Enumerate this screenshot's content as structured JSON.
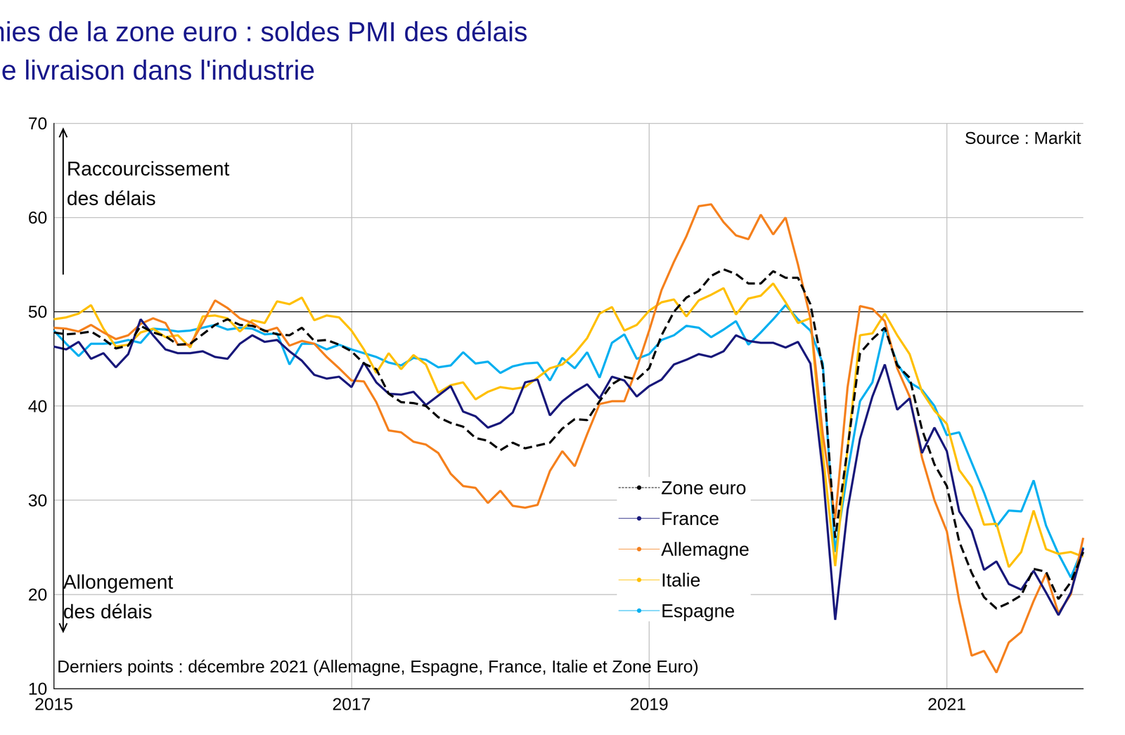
{
  "chart_data": {
    "type": "line",
    "title": "Principales économies de la zone euro : soldes PMI des délais de livraison dans l'industrie",
    "categories": [
      "2015",
      null,
      null,
      null,
      null,
      null,
      null,
      null,
      null,
      null,
      null,
      null,
      null,
      null,
      null,
      null,
      null,
      null,
      null,
      null,
      null,
      null,
      null,
      null,
      "2017",
      null,
      null,
      null,
      null,
      null,
      null,
      null,
      null,
      null,
      null,
      null,
      null,
      null,
      null,
      null,
      null,
      null,
      null,
      null,
      null,
      null,
      null,
      null,
      "2019",
      null,
      null,
      null,
      null,
      null,
      null,
      null,
      null,
      null,
      null,
      null,
      null,
      null,
      null,
      null,
      null,
      null,
      null,
      null,
      null,
      null,
      null,
      null,
      "2021",
      null,
      null,
      null,
      null,
      null,
      null,
      null,
      null,
      null,
      null,
      null
    ],
    "series": [
      {
        "name": "Zone euro",
        "color": "#000000",
        "line_style": "dashed",
        "values": [
          47.8,
          47.6,
          47.7,
          47.9,
          47.1,
          46.1,
          46.4,
          48.5,
          47.8,
          47.4,
          46.5,
          46.6,
          47.6,
          48.6,
          49.2,
          48.6,
          48.5,
          48.0,
          47.6,
          47.5,
          48.3,
          46.9,
          47.0,
          46.5,
          45.8,
          44.5,
          43.9,
          41.3,
          40.4,
          40.3,
          40.0,
          38.8,
          38.2,
          37.8,
          36.6,
          36.3,
          35.3,
          36.1,
          35.5,
          35.8,
          36.1,
          37.6,
          38.6,
          38.5,
          40.5,
          42.3,
          43.1,
          42.8,
          44.0,
          47.5,
          50.0,
          51.5,
          52.2,
          53.8,
          54.5,
          54.0,
          53.0,
          53.0,
          54.3,
          53.6,
          53.6,
          50.8,
          44.0,
          26.0,
          35.5,
          45.6,
          47.1,
          48.3,
          44.3,
          43.0,
          37.5,
          33.8,
          31.5,
          25.6,
          22.3,
          19.7,
          18.5,
          19.1,
          19.9,
          22.7,
          22.4,
          19.5,
          21.3,
          24.5
        ]
      },
      {
        "name": "France",
        "color": "#1b1b7c",
        "line_style": "solid",
        "values": [
          46.3,
          46.0,
          46.8,
          45.0,
          45.6,
          44.1,
          45.5,
          49.2,
          47.5,
          46.0,
          45.6,
          45.6,
          45.8,
          45.2,
          45.0,
          46.6,
          47.5,
          46.8,
          47.0,
          45.8,
          44.8,
          43.3,
          42.9,
          43.1,
          42.0,
          44.6,
          42.5,
          41.3,
          41.2,
          41.5,
          40.1,
          41.1,
          42.1,
          39.4,
          38.9,
          37.7,
          38.2,
          39.3,
          42.5,
          42.8,
          39.0,
          40.5,
          41.5,
          42.3,
          40.8,
          43.1,
          42.7,
          41.0,
          42.1,
          42.8,
          44.4,
          44.9,
          45.5,
          45.2,
          45.8,
          47.5,
          46.9,
          46.7,
          46.7,
          46.2,
          46.8,
          44.5,
          33.0,
          17.3,
          29.0,
          36.5,
          41.0,
          44.4,
          39.6,
          40.8,
          35.0,
          37.7,
          35.2,
          28.8,
          26.8,
          22.6,
          23.5,
          21.1,
          20.5,
          22.5,
          20.2,
          17.8,
          20.2,
          24.9
        ]
      },
      {
        "name": "Allemagne",
        "color": "#f58220",
        "line_style": "solid",
        "values": [
          48.3,
          48.2,
          47.9,
          48.6,
          47.8,
          47.1,
          47.5,
          48.7,
          49.3,
          48.8,
          46.5,
          46.5,
          48.8,
          51.2,
          50.4,
          49.3,
          48.8,
          47.9,
          48.3,
          46.4,
          46.9,
          46.6,
          45.2,
          44.0,
          42.7,
          42.6,
          40.4,
          37.4,
          37.2,
          36.2,
          35.9,
          35.0,
          32.8,
          31.5,
          31.3,
          29.7,
          31.0,
          29.4,
          29.2,
          29.5,
          33.1,
          35.2,
          33.6,
          37.0,
          40.2,
          40.5,
          40.5,
          44.0,
          48.0,
          52.3,
          55.3,
          58.0,
          61.2,
          61.4,
          59.5,
          58.1,
          57.7,
          60.3,
          58.2,
          60.0,
          55.0,
          49.3,
          37.0,
          28.0,
          42.0,
          50.6,
          50.3,
          49.0,
          44.0,
          41.0,
          34.5,
          30.0,
          26.7,
          19.3,
          13.5,
          14.0,
          11.7,
          14.9,
          16.0,
          19.3,
          22.2,
          18.0,
          20.0,
          26.0
        ]
      },
      {
        "name": "Italie",
        "color": "#ffc000",
        "line_style": "solid",
        "values": [
          49.2,
          49.4,
          49.8,
          50.7,
          48.2,
          46.3,
          46.5,
          47.8,
          48.2,
          47.3,
          47.5,
          46.2,
          49.5,
          49.6,
          49.3,
          47.9,
          49.1,
          48.8,
          51.1,
          50.8,
          51.5,
          49.1,
          49.6,
          49.4,
          48.0,
          46.0,
          43.5,
          45.6,
          43.9,
          45.4,
          44.4,
          41.4,
          42.2,
          42.5,
          40.7,
          41.5,
          42.0,
          41.8,
          42.0,
          43.0,
          44.0,
          44.4,
          45.6,
          47.2,
          49.8,
          50.5,
          48.0,
          48.6,
          50.1,
          51.0,
          51.3,
          49.5,
          51.2,
          51.8,
          52.5,
          49.7,
          51.4,
          51.7,
          53.0,
          51.0,
          48.8,
          49.3,
          35.0,
          23.0,
          35.5,
          47.5,
          47.7,
          49.8,
          47.5,
          45.5,
          41.5,
          39.5,
          38.1,
          33.2,
          31.4,
          27.4,
          27.5,
          22.9,
          24.5,
          28.9,
          24.8,
          24.3,
          24.5,
          24.0
        ]
      },
      {
        "name": "Espagne",
        "color": "#00b0f0",
        "line_style": "solid",
        "values": [
          48.0,
          46.6,
          45.3,
          46.6,
          46.6,
          46.7,
          47.0,
          46.7,
          48.2,
          48.1,
          47.9,
          48.0,
          48.3,
          48.6,
          48.1,
          48.3,
          48.2,
          47.6,
          47.7,
          44.4,
          46.6,
          46.6,
          46.0,
          46.5,
          46.0,
          45.6,
          45.2,
          44.6,
          44.3,
          45.1,
          44.9,
          44.1,
          44.3,
          45.7,
          44.5,
          44.7,
          43.5,
          44.2,
          44.5,
          44.6,
          42.7,
          45.1,
          44.0,
          45.7,
          43.0,
          46.7,
          47.6,
          45.0,
          45.5,
          47.0,
          47.5,
          48.5,
          48.3,
          47.3,
          48.1,
          49.0,
          46.5,
          47.8,
          49.2,
          50.7,
          49.2,
          48.0,
          44.5,
          24.5,
          33.0,
          40.5,
          42.5,
          48.3,
          44.5,
          42.5,
          41.7,
          40.0,
          36.9,
          37.2,
          34.0,
          30.8,
          27.2,
          28.9,
          28.8,
          32.1,
          27.3,
          24.3,
          21.8,
          25.0
        ]
      }
    ],
    "marker": "none",
    "ylim": [
      10,
      70
    ],
    "yticks": [
      10,
      20,
      30,
      40,
      50,
      60,
      70
    ],
    "grid": true,
    "legend": "lower right",
    "reference_line": 50,
    "annotations": [
      "Raccourcissement\ndes délais",
      "Allongement\ndes délais",
      "Source : Markit",
      "Derniers points : décembre 2021 (Allemagne, Espagne, France, Italie et Zone Euro)"
    ]
  }
}
